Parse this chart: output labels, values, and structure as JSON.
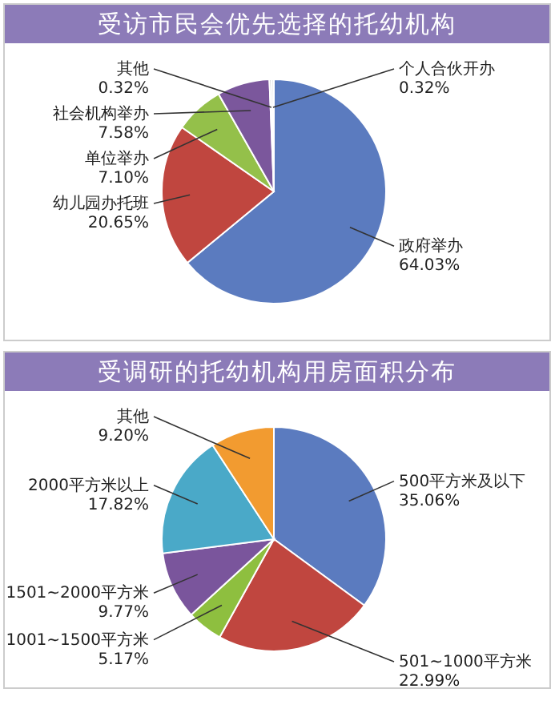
{
  "chart_data": [
    {
      "type": "pie",
      "title": "受访市民会优先选择的托幼机构",
      "categories": [
        "政府举办",
        "幼儿园办托班",
        "单位举办",
        "社会机构举办",
        "其他",
        "个人合伙开办"
      ],
      "values": [
        64.03,
        20.65,
        7.1,
        7.58,
        0.32,
        0.32
      ],
      "value_labels": [
        "64.03%",
        "20.65%",
        "7.10%",
        "7.58%",
        "0.32%",
        "0.32%"
      ],
      "colors": [
        "#5b7bbf",
        "#c0463f",
        "#94c04a",
        "#7b579c",
        "#c9c9c9",
        "#e6e6e6"
      ]
    },
    {
      "type": "pie",
      "title": "受调研的托幼机构用房面积分布",
      "categories": [
        "500平方米及以下",
        "501~1000平方米",
        "1001~1500平方米",
        "1501~2000平方米",
        "2000平方米以上",
        "其他"
      ],
      "values": [
        35.06,
        22.99,
        5.17,
        9.77,
        17.82,
        9.2
      ],
      "value_labels": [
        "35.06%",
        "22.99%",
        "5.17%",
        "9.77%",
        "17.82%",
        "9.20%"
      ],
      "colors": [
        "#5b7bbf",
        "#c0463f",
        "#8ebf3f",
        "#7a559c",
        "#4aa9c8",
        "#f29b30"
      ]
    }
  ]
}
